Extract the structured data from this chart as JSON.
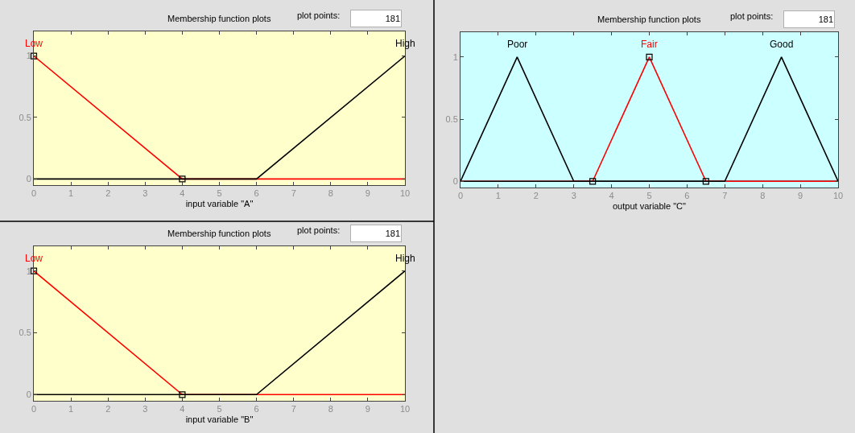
{
  "chart_data": [
    {
      "type": "line",
      "title": "Membership function plots",
      "xlabel": "input variable \"A\"",
      "annotations": [
        "plot points:",
        "181"
      ],
      "series": [
        {
          "name": "Low",
          "color": "#ff0000",
          "x": [
            0,
            4,
            10
          ],
          "values": [
            1,
            0,
            0
          ]
        },
        {
          "name": "High",
          "color": "#000000",
          "x": [
            0,
            6,
            10
          ],
          "values": [
            0,
            0,
            1
          ]
        },
        {
          "type": "scatter",
          "color": "#000000",
          "marker": "square",
          "x": [
            0,
            4
          ],
          "values": [
            1,
            0
          ]
        }
      ],
      "xlim": [
        0,
        10
      ],
      "ylim": [
        -0.05,
        1.2
      ],
      "xticks": [
        0,
        1,
        2,
        3,
        4,
        5,
        6,
        7,
        8,
        9,
        10
      ],
      "yticks": [
        0,
        0.5,
        1
      ]
    },
    {
      "type": "line",
      "title": "Membership function plots",
      "xlabel": "output variable \"C\"",
      "annotations": [
        "plot points:",
        "181"
      ],
      "series": [
        {
          "name": "Poor",
          "color": "#000000",
          "x": [
            0,
            1.5,
            3,
            10
          ],
          "values": [
            0,
            1,
            0,
            0
          ]
        },
        {
          "name": "Fair",
          "color": "#ff0000",
          "x": [
            0,
            3.5,
            5,
            6.5,
            10
          ],
          "values": [
            0,
            0,
            1,
            0,
            0
          ]
        },
        {
          "name": "Good",
          "color": "#000000",
          "x": [
            0,
            7,
            8.5,
            10
          ],
          "values": [
            0,
            0,
            1,
            0
          ]
        },
        {
          "type": "scatter",
          "color": "#000000",
          "marker": "square",
          "x": [
            3.5,
            5,
            6.5
          ],
          "values": [
            0,
            1,
            0
          ]
        }
      ],
      "xlim": [
        0,
        10
      ],
      "ylim": [
        -0.05,
        1.2
      ],
      "xticks": [
        0,
        1,
        2,
        3,
        4,
        5,
        6,
        7,
        8,
        9,
        10
      ],
      "yticks": [
        0,
        0.5,
        1
      ]
    },
    {
      "type": "line",
      "title": "Membership function plots",
      "xlabel": "input variable \"B\"",
      "annotations": [
        "plot points:",
        "181"
      ],
      "series": [
        {
          "name": "Low",
          "color": "#ff0000",
          "x": [
            0,
            4,
            10
          ],
          "values": [
            1,
            0,
            0
          ]
        },
        {
          "name": "High",
          "color": "#000000",
          "x": [
            0,
            6,
            10
          ],
          "values": [
            0,
            0,
            1
          ]
        },
        {
          "type": "scatter",
          "color": "#000000",
          "marker": "square",
          "x": [
            0,
            4
          ],
          "values": [
            1,
            0
          ]
        }
      ],
      "xlim": [
        0,
        10
      ],
      "ylim": [
        -0.05,
        1.2
      ],
      "xticks": [
        0,
        1,
        2,
        3,
        4,
        5,
        6,
        7,
        8,
        9,
        10
      ],
      "yticks": [
        0,
        0.5,
        1
      ]
    }
  ]
}
